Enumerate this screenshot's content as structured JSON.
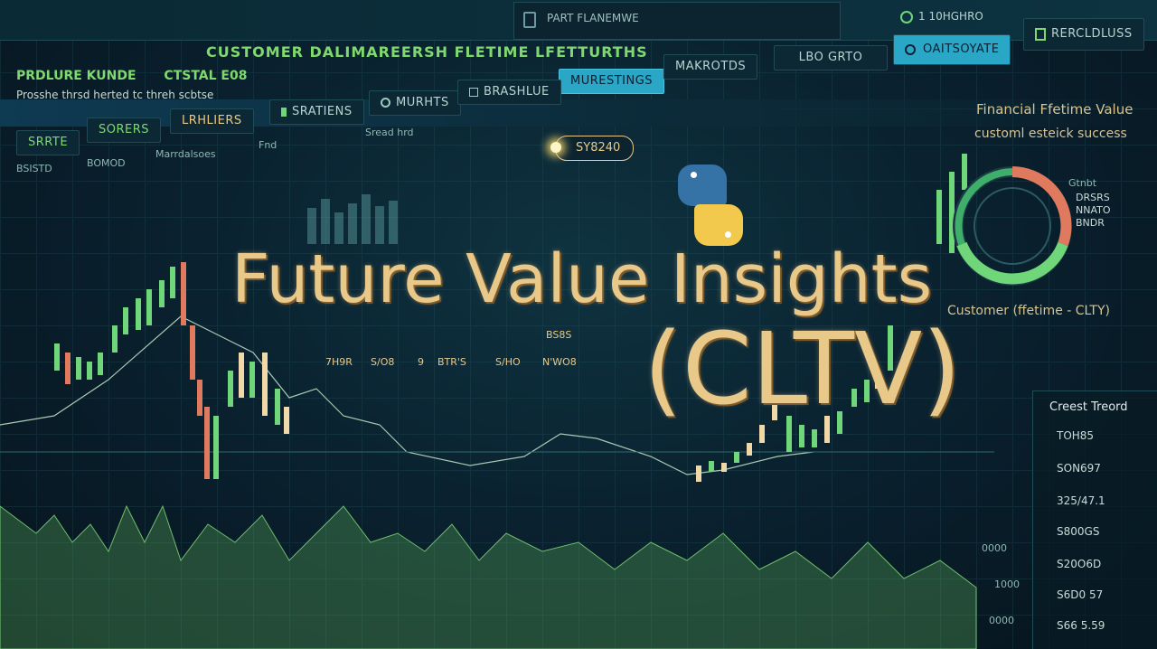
{
  "header": {
    "brand": "PRDLURE KUNDE",
    "brand2": "CTSTAL E08",
    "app_title": "CUSTOMER DALIMAREERSH FLETIME LFETTURTHS",
    "search_placeholder": "PART FLANEMWE",
    "top_counter": "1 10HGHRO",
    "top_action": "RERCLDLUSS"
  },
  "nav_tabs": [
    {
      "label": "MURESTINGS"
    },
    {
      "label": "MAKROTDS"
    },
    {
      "label": "LBO GRTO"
    },
    {
      "label": "OAITSOYATE"
    }
  ],
  "subnav": {
    "caption": "Prosshe thrsd herted tc threh scbtse",
    "items": [
      "SRATIENS",
      "MURHTS",
      "BRASHLUE"
    ]
  },
  "toolbar": {
    "items": [
      "SRRTE",
      "SORERS",
      "LRHLIERS"
    ],
    "labels": [
      "Fnd",
      "Sread hrd"
    ]
  },
  "tiny_row": [
    "BSISTD",
    "BOMOD",
    "Marrdalsoes"
  ],
  "price_tag": "SY8240",
  "hero": {
    "line1": "Future Value  Insights",
    "line2": "(CLTV)"
  },
  "python_logo": "python-logo",
  "data_row": {
    "heading": "BS8S",
    "values": [
      "7H9R",
      "S/O8",
      "9",
      "BTR'S",
      "S/HO",
      "N'WO8"
    ]
  },
  "right_panel": {
    "title": "Financial Ffetime Value",
    "subtitle": "customl esteick success",
    "legend": [
      "Gtnbt",
      "DRSRS",
      "NNATO",
      "BNDR"
    ],
    "footer": "Customer (ffetime - CLTY)"
  },
  "trend_panel": {
    "title": "Creest Treord",
    "items": [
      "TOH85",
      "SON697",
      "325/47.1",
      "S800GS",
      "S20O6D",
      "S6D0 57",
      "S66 5.59"
    ]
  },
  "axis_labels": [
    "0000",
    "1000",
    "0000"
  ],
  "colors": {
    "accent": "#2aa7c6",
    "gold": "#e8c98a",
    "green": "#6fd67a",
    "salmon": "#e07a5f",
    "bg": "#071a26"
  }
}
